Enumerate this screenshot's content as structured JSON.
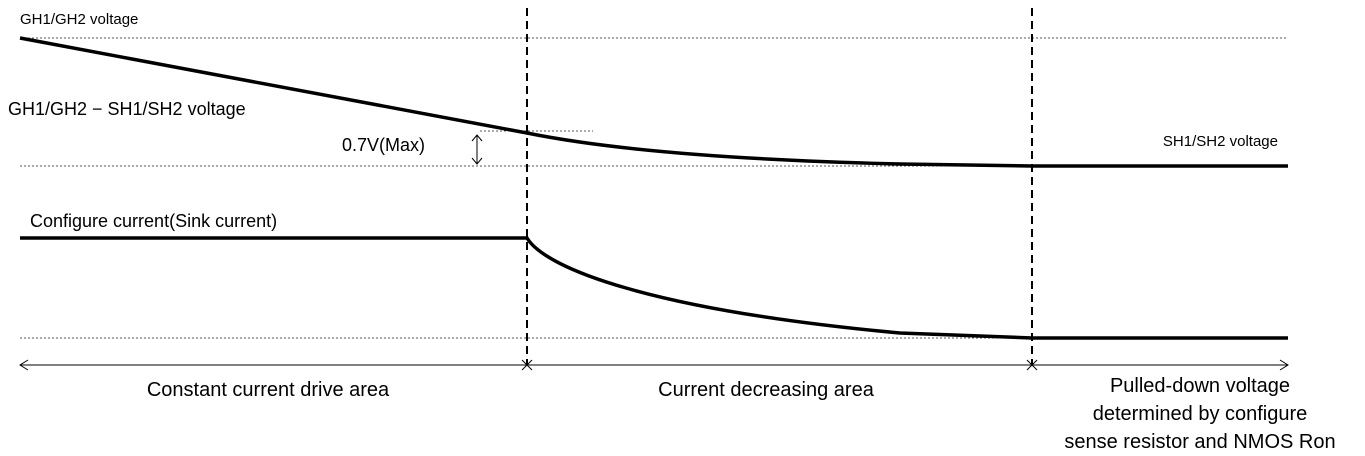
{
  "labels": {
    "gh_voltage": "GH1/GH2 voltage",
    "gh_sh_voltage": "GH1/GH2 − SH1/SH2 voltage",
    "drop": "0.7V(Max)",
    "sh_voltage": "SH1/SH2 voltage",
    "configure_current": "Configure current(Sink current)"
  },
  "areas": {
    "constant": "Constant current drive area",
    "decreasing": "Current decreasing area",
    "pulled_down_lines": [
      "Pulled-down voltage",
      "determined by configure",
      "sense resistor and NMOS Ron"
    ]
  },
  "colors": {
    "line": "#000000",
    "guide": "#555555",
    "background": "#ffffff"
  }
}
